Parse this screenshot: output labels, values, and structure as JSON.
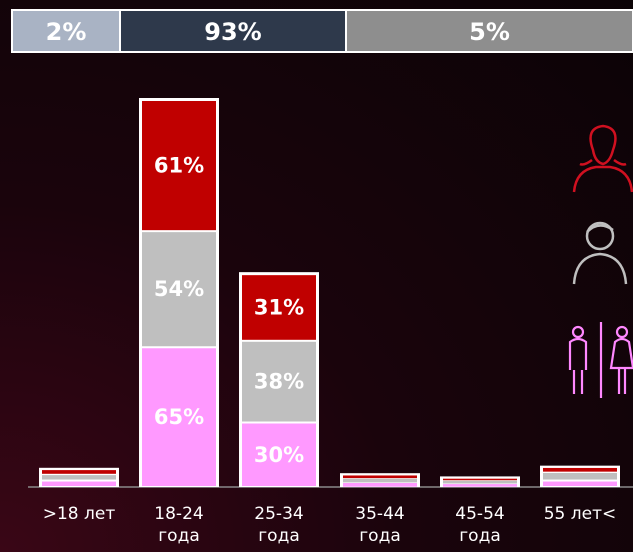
{
  "chart_data": {
    "type": "stacked-bar",
    "shares": {
      "values": [
        2,
        93,
        5
      ],
      "value_labels": [
        "2%",
        "93%",
        "5%"
      ],
      "colors": [
        "#a9b3c4",
        "#2e394b",
        "#8e8e8e"
      ]
    },
    "categories": [
      ">18 лет",
      "18-24\nгода",
      "25-34\nгода",
      "35-44\nгода",
      "45-54\nгода",
      "55 лет<"
    ],
    "series": [
      {
        "color": "#ff99ff",
        "values": [
          3,
          65,
          30,
          2,
          1.5,
          3
        ],
        "value_labels": [
          null,
          "65%",
          "30%",
          null,
          null,
          null
        ]
      },
      {
        "color": "#bfbfbf",
        "values": [
          3,
          54,
          38,
          2,
          1.5,
          4
        ],
        "value_labels": [
          null,
          "54%",
          "38%",
          null,
          null,
          null
        ]
      },
      {
        "color": "#c00000",
        "values": [
          2,
          61,
          31,
          1.5,
          1,
          2
        ],
        "value_labels": [
          null,
          "61%",
          "31%",
          null,
          null,
          null
        ]
      }
    ]
  }
}
